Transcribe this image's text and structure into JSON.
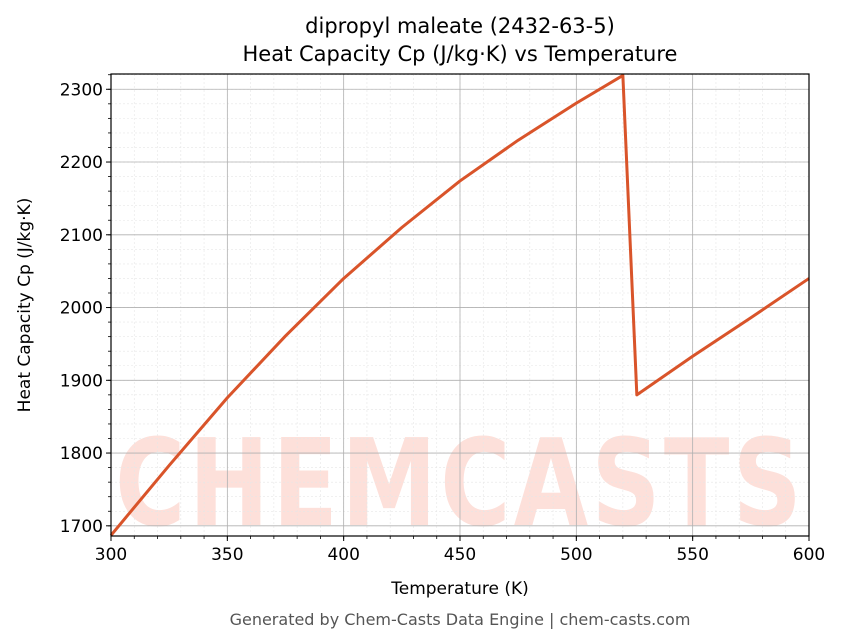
{
  "chart_data": {
    "type": "line",
    "title": "dipropyl maleate (2432-63-5)",
    "subtitle": "Heat Capacity Cp (J/kg·K) vs Temperature",
    "x_label": "Temperature (K)",
    "y_label": "Heat Capacity Cp (J/kg·K)",
    "footer": "Generated by Chem-Casts Data Engine | chem-casts.com",
    "watermark": "CHEMCASTS",
    "x": [
      300,
      325,
      350,
      375,
      400,
      425,
      450,
      475,
      500,
      520,
      526,
      550,
      575,
      600
    ],
    "series": [
      {
        "name": "Heat Capacity Cp",
        "color": "#d9542a",
        "values": [
          1687,
          1783,
          1876,
          1961,
          2040,
          2110,
          2174,
          2230,
          2281,
          2319,
          1880,
          1933,
          1986,
          2040
        ]
      }
    ],
    "xlim": [
      300,
      600
    ],
    "xticks": [
      300,
      350,
      400,
      450,
      500,
      550,
      600
    ],
    "ylim": [
      1686,
      2321
    ],
    "yticks": [
      1700,
      1800,
      1900,
      2000,
      2100,
      2200,
      2300
    ],
    "grid": true
  }
}
